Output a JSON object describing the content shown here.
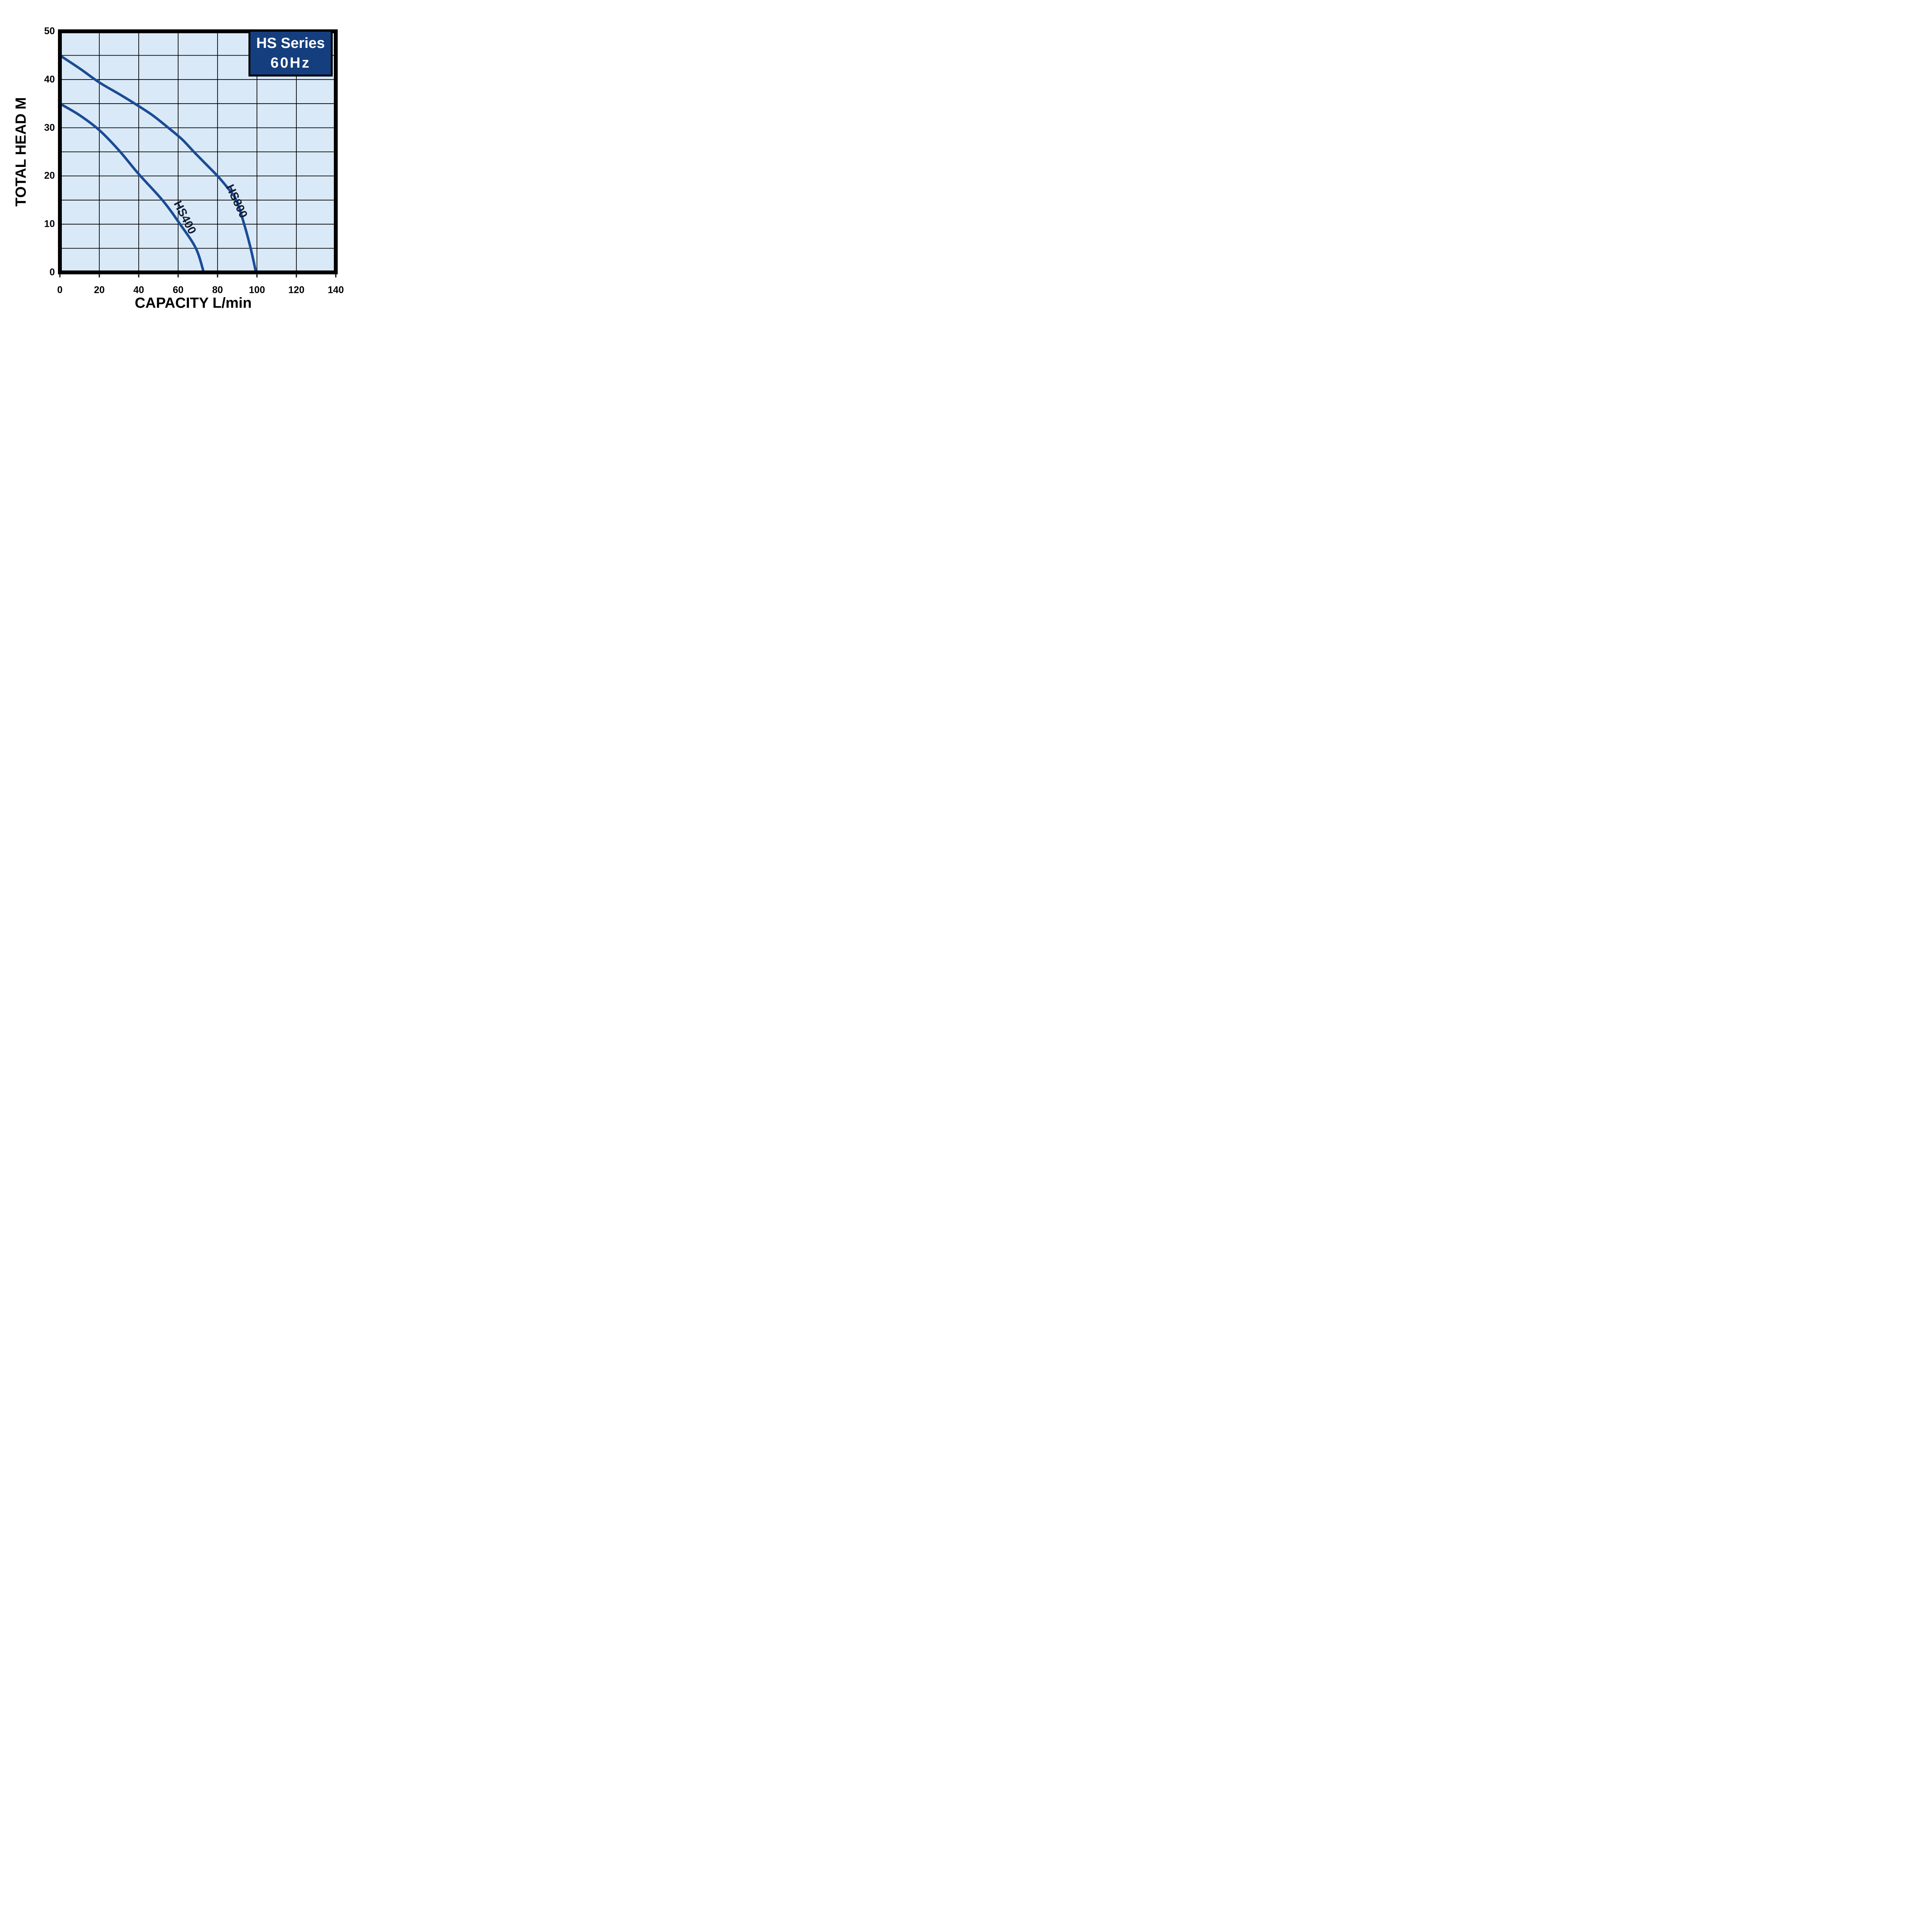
{
  "legend": {
    "line1": "HS Series",
    "line2": "60Hz"
  },
  "colors": {
    "plot_background": "#d9e9f7",
    "curve": "#1a4c96",
    "legend_background": "#153e7e",
    "legend_text": "#ffffff",
    "grid": "#000000",
    "border": "#000000",
    "text": "#000000"
  },
  "chart_data": {
    "type": "line",
    "title": "HS Series 60Hz",
    "xlabel": "CAPACITY L/min",
    "ylabel": "TOTAL HEAD M",
    "xlim": [
      0,
      140
    ],
    "ylim": [
      0,
      50
    ],
    "x_ticks": [
      0,
      20,
      40,
      60,
      80,
      100,
      120,
      140
    ],
    "y_ticks": [
      50,
      40,
      30,
      20,
      10,
      0
    ],
    "x_gridline_step": 20,
    "y_gridline_step": 5,
    "grid": true,
    "legend_position": "top-right",
    "series": [
      {
        "name": "HS400",
        "points": [
          [
            0,
            35
          ],
          [
            10,
            32.6
          ],
          [
            20,
            29.5
          ],
          [
            30,
            25.3
          ],
          [
            40,
            20.4
          ],
          [
            52,
            15
          ],
          [
            61,
            10
          ],
          [
            69,
            5
          ],
          [
            73,
            0
          ]
        ]
      },
      {
        "name": "HS800",
        "points": [
          [
            0,
            45
          ],
          [
            10,
            42.3
          ],
          [
            20,
            39.4
          ],
          [
            30,
            37
          ],
          [
            38,
            35
          ],
          [
            47,
            32.6
          ],
          [
            55,
            30
          ],
          [
            62,
            27.6
          ],
          [
            68,
            25
          ],
          [
            74,
            22.5
          ],
          [
            80,
            20
          ],
          [
            85,
            17.6
          ],
          [
            89.5,
            15
          ],
          [
            93.5,
            10
          ],
          [
            96.8,
            5
          ],
          [
            99.5,
            0
          ]
        ]
      }
    ]
  }
}
